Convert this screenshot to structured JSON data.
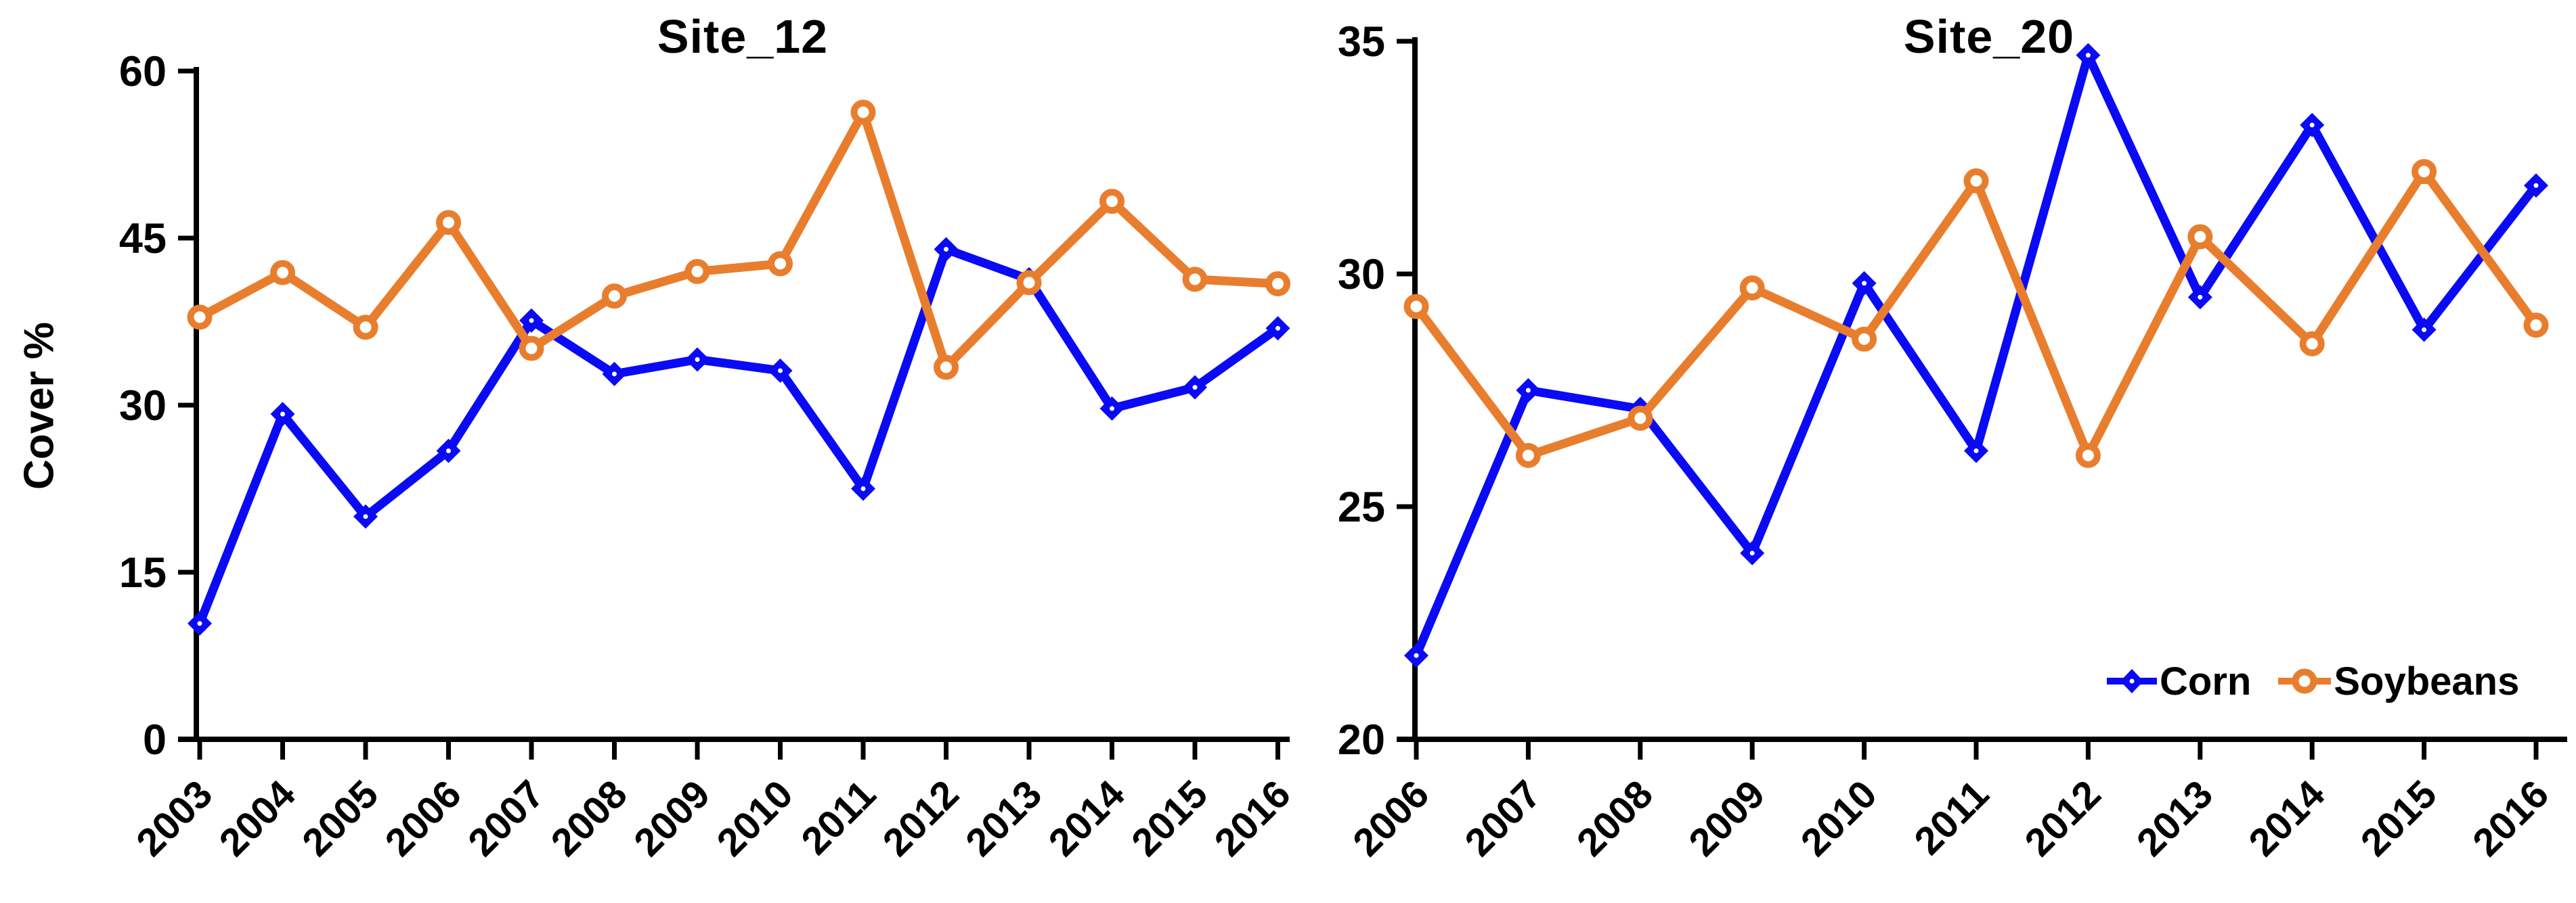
{
  "figure": {
    "background": "#ffffff",
    "axis_color": "#000000"
  },
  "colors": {
    "corn": "#0a0af5",
    "soybeans": "#e87e2d"
  },
  "legend": {
    "corn_label": "Corn",
    "soybeans_label": "Soybeans",
    "position": "bottom-right-of-second-chart"
  },
  "chart_data": [
    {
      "type": "line",
      "title": "Site_12",
      "ylabel": "Cover %",
      "xlabel": "",
      "categories": [
        "2003",
        "2004",
        "2005",
        "2006",
        "2007",
        "2008",
        "2009",
        "2010",
        "2011",
        "2012",
        "2013",
        "2014",
        "2015",
        "2016"
      ],
      "yticks": [
        0,
        15,
        30,
        45,
        60
      ],
      "ylim": [
        0,
        60
      ],
      "grid": false,
      "legend_visible": false,
      "series": [
        {
          "name": "Corn",
          "marker": "filled-diamond",
          "color": "#0a0af5",
          "values": [
            10.4,
            29.2,
            20.0,
            25.9,
            37.6,
            32.8,
            34.1,
            33.1,
            22.5,
            44.0,
            41.3,
            29.7,
            31.6,
            36.9
          ]
        },
        {
          "name": "Soybeans",
          "marker": "open-circle",
          "color": "#e87e2d",
          "values": [
            37.9,
            41.9,
            37.0,
            46.4,
            35.1,
            39.8,
            42.0,
            42.7,
            56.3,
            33.4,
            41.0,
            48.3,
            41.3,
            40.9
          ]
        }
      ]
    },
    {
      "type": "line",
      "title": "Site_20",
      "ylabel": "",
      "xlabel": "",
      "categories": [
        "2006",
        "2007",
        "2008",
        "2009",
        "2010",
        "2011",
        "2012",
        "2013",
        "2014",
        "2015",
        "2016"
      ],
      "yticks": [
        20,
        25,
        30,
        35
      ],
      "ylim": [
        20,
        35
      ],
      "grid": false,
      "legend_visible": true,
      "legend_position": "bottom-right",
      "series": [
        {
          "name": "Corn",
          "marker": "filled-diamond",
          "color": "#0a0af5",
          "values": [
            21.8,
            27.5,
            27.1,
            24.0,
            29.8,
            26.2,
            34.7,
            29.5,
            33.2,
            28.8,
            31.9
          ]
        },
        {
          "name": "Soybeans",
          "marker": "open-circle",
          "color": "#e87e2d",
          "values": [
            29.3,
            26.1,
            26.9,
            29.7,
            28.6,
            32.0,
            26.1,
            30.8,
            28.5,
            32.2,
            28.9
          ]
        }
      ]
    }
  ]
}
